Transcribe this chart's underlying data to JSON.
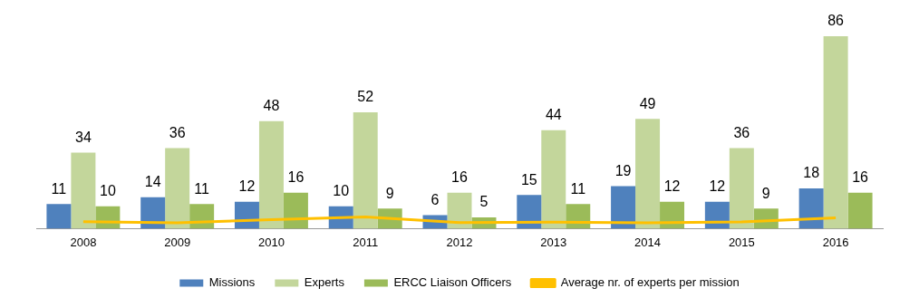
{
  "chart_data": {
    "type": "bar",
    "categories": [
      "2008",
      "2009",
      "2010",
      "2011",
      "2012",
      "2013",
      "2014",
      "2015",
      "2016"
    ],
    "series": [
      {
        "name": "Missions",
        "color": "#4f81bd",
        "values": [
          11,
          14,
          12,
          10,
          6,
          15,
          19,
          12,
          18
        ],
        "value_labels": [
          "11",
          "14",
          "12",
          "10",
          "6",
          "15",
          "19",
          "12",
          "18"
        ]
      },
      {
        "name": "Experts",
        "color": "#c3d69b",
        "values": [
          34,
          36,
          48,
          52,
          16,
          44,
          49,
          36,
          86
        ],
        "value_labels": [
          "34",
          "36",
          "48",
          "52",
          "16",
          "44",
          "49",
          "36",
          "86"
        ]
      },
      {
        "name": "ERCC Liaison Officers",
        "color": "#9bbb59",
        "values": [
          10,
          11,
          16,
          9,
          5,
          11,
          12,
          9,
          16
        ],
        "value_labels": [
          "10",
          "11",
          "16",
          "9",
          "5",
          "11",
          "12",
          "9",
          "16"
        ]
      },
      {
        "name": "Average nr. of experts per mission",
        "type": "line",
        "color": "#ffc000",
        "values": [
          3.1,
          2.6,
          4.0,
          5.2,
          2.7,
          2.9,
          2.6,
          3.0,
          4.8
        ]
      }
    ],
    "tick_labels": "x",
    "grid": false,
    "legend": "bottom",
    "marker": "none",
    "line_style": "solid"
  }
}
